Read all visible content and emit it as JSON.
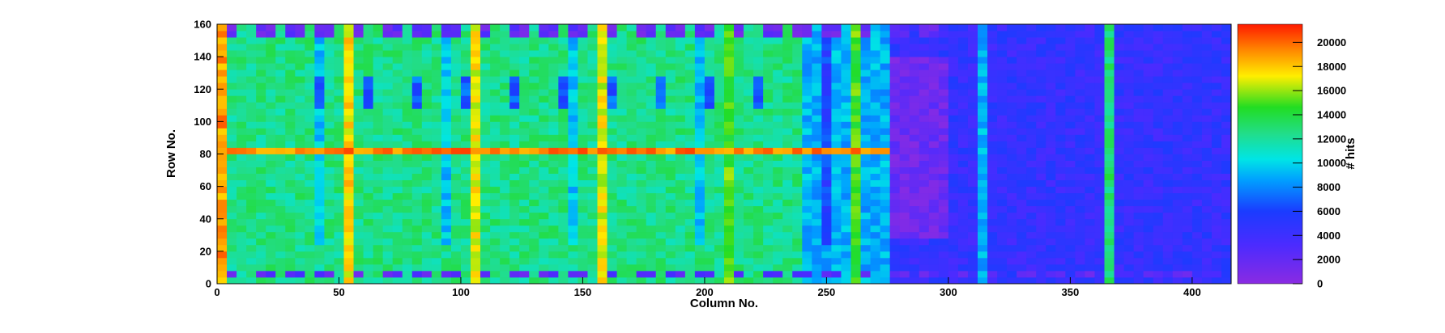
{
  "chart_data": {
    "type": "heatmap",
    "title": "",
    "xlabel": "Column No.",
    "ylabel": "Row No.",
    "zlabel": "# hits",
    "xlim": [
      0,
      416
    ],
    "ylim": [
      0,
      160
    ],
    "zlim": [
      0,
      21500
    ],
    "x_ticks": [
      0,
      50,
      100,
      150,
      200,
      250,
      300,
      350,
      400
    ],
    "y_ticks": [
      0,
      20,
      40,
      60,
      80,
      100,
      120,
      140,
      160
    ],
    "z_ticks": [
      0,
      2000,
      4000,
      6000,
      8000,
      10000,
      12000,
      14000,
      16000,
      18000,
      20000
    ],
    "colormap": "rainbow",
    "grid": false,
    "legend": "colorbar-right",
    "colors": {
      "low": "#8a2be2",
      "mid_low": "#1a3cff",
      "mid": "#00e5e5",
      "mid_high": "#22dd22",
      "high_mid": "#ffee00",
      "high": "#ff1a00"
    },
    "bands": {
      "column_hot_lines": [
        {
          "x": 1,
          "z": 19000
        },
        {
          "x": 52,
          "z": 17500
        },
        {
          "x": 104,
          "z": 17000
        },
        {
          "x": 156,
          "z": 17000
        },
        {
          "x": 208,
          "z": 15000
        },
        {
          "x": 260,
          "z": 15000
        },
        {
          "x": 312,
          "z": 9000
        },
        {
          "x": 364,
          "z": 13000
        }
      ],
      "row_hot_line": {
        "y": 80,
        "z": 19500
      },
      "left_region_z": 12500,
      "middle_region_z": 9000,
      "right_region_z": 4500
    }
  }
}
